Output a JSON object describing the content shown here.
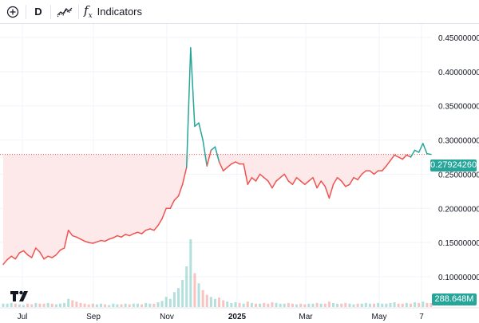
{
  "toolbar": {
    "add_icon": "plus-circle-icon",
    "interval": "D",
    "chart_style_icon": "line-chart-style-icon",
    "indicators_icon": "fx-icon",
    "indicators_glyph": "f",
    "indicators_label": "Indicators"
  },
  "price_scale": {
    "labels": [
      "0.45000000",
      "0.40000000",
      "0.35000000",
      "0.30000000",
      "0.25000000",
      "0.20000000",
      "0.15000000",
      "0.10000000"
    ],
    "current_price": "0.27924260",
    "volume": "288.648M"
  },
  "time_scale": {
    "labels": [
      "Jul",
      "Sep",
      "Nov",
      "2025",
      "Mar",
      "May",
      "7"
    ]
  },
  "colors": {
    "up": "#26a69a",
    "down": "#ef5350",
    "fill": "#fde9e9",
    "grid": "#f0f3fa"
  },
  "chart_data": {
    "type": "line",
    "ylim": [
      0.1,
      0.45
    ],
    "series": [
      {
        "values": [
          0.118,
          0.125,
          0.13,
          0.126,
          0.135,
          0.138,
          0.132,
          0.128,
          0.142,
          0.136,
          0.126,
          0.13,
          0.128,
          0.132,
          0.139,
          0.142,
          0.168,
          0.16,
          0.158,
          0.155,
          0.152,
          0.15,
          0.149,
          0.151,
          0.153,
          0.152,
          0.155,
          0.157,
          0.16,
          0.158,
          0.162,
          0.16,
          0.163,
          0.165,
          0.163,
          0.168,
          0.17,
          0.168,
          0.175,
          0.185,
          0.2,
          0.2,
          0.212,
          0.218,
          0.235,
          0.26,
          0.435,
          0.32,
          0.325,
          0.3,
          0.262,
          0.285,
          0.29,
          0.268,
          0.255,
          0.26,
          0.265,
          0.268,
          0.265,
          0.265,
          0.235,
          0.245,
          0.24,
          0.25,
          0.245,
          0.24,
          0.23,
          0.24,
          0.245,
          0.25,
          0.24,
          0.235,
          0.245,
          0.24,
          0.235,
          0.24,
          0.245,
          0.23,
          0.24,
          0.232,
          0.215,
          0.235,
          0.245,
          0.24,
          0.232,
          0.235,
          0.245,
          0.242,
          0.25,
          0.255,
          0.255,
          0.25,
          0.255,
          0.255,
          0.262,
          0.27,
          0.278,
          0.275,
          0.272,
          0.278,
          0.275,
          0.285,
          0.282,
          0.295,
          0.28,
          0.279
        ]
      }
    ],
    "volume": [
      0.05,
      0.05,
      0.06,
      0.05,
      0.04,
      0.03,
      0.05,
      0.04,
      0.06,
      0.05,
      0.05,
      0.06,
      0.05,
      0.04,
      0.05,
      0.06,
      0.12,
      0.1,
      0.08,
      0.06,
      0.05,
      0.04,
      0.05,
      0.04,
      0.05,
      0.04,
      0.03,
      0.05,
      0.04,
      0.04,
      0.05,
      0.04,
      0.05,
      0.05,
      0.04,
      0.06,
      0.05,
      0.05,
      0.07,
      0.09,
      0.15,
      0.12,
      0.22,
      0.28,
      0.4,
      0.6,
      1.0,
      0.5,
      0.35,
      0.25,
      0.18,
      0.15,
      0.12,
      0.14,
      0.1,
      0.08,
      0.06,
      0.07,
      0.06,
      0.05,
      0.08,
      0.06,
      0.05,
      0.05,
      0.06,
      0.05,
      0.07,
      0.06,
      0.05,
      0.05,
      0.06,
      0.05,
      0.04,
      0.05,
      0.04,
      0.05,
      0.05,
      0.06,
      0.05,
      0.05,
      0.08,
      0.06,
      0.05,
      0.05,
      0.06,
      0.05,
      0.04,
      0.05,
      0.05,
      0.06,
      0.05,
      0.05,
      0.06,
      0.05,
      0.05,
      0.06,
      0.07,
      0.05,
      0.05,
      0.06,
      0.05,
      0.07,
      0.06,
      0.08,
      0.06,
      0.06
    ]
  }
}
